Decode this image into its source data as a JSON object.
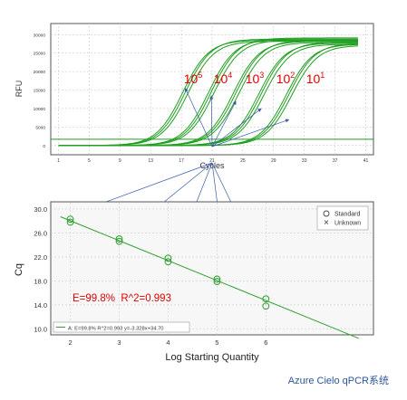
{
  "caption": "Azure Cielo qPCR系统",
  "chart_data": [
    {
      "type": "line",
      "title": "",
      "xlabel": "Cycles",
      "ylabel": "RFU",
      "xlim": [
        0,
        42
      ],
      "ylim": [
        -2500,
        33000
      ],
      "x_ticks": [
        1,
        5,
        9,
        13,
        17,
        21,
        25,
        29,
        33,
        37,
        41
      ],
      "y_ticks": [
        0,
        5000,
        10000,
        15000,
        20000,
        25000,
        30000
      ],
      "grid": true,
      "baseline_rfu": 1700,
      "threshold_rfu": 1700,
      "curve_color": "#1f9e1f",
      "dilution_labels": [
        "10",
        "10",
        "10",
        "10",
        "10"
      ],
      "dilution_exponents": [
        "5",
        "4",
        "3",
        "2",
        "1"
      ],
      "dilution_label_color": "#e00000",
      "series": [
        {
          "midpoint": 17.5,
          "plateau": 28500,
          "replicates": 3
        },
        {
          "midpoint": 20.9,
          "plateau": 28800,
          "replicates": 3
        },
        {
          "midpoint": 24.1,
          "plateau": 28200,
          "replicates": 3
        },
        {
          "midpoint": 27.4,
          "plateau": 27700,
          "replicates": 3
        },
        {
          "midpoint": 31.0,
          "plateau": 27400,
          "replicates": 3
        }
      ]
    },
    {
      "type": "scatter",
      "title": "",
      "xlabel": "Log Starting Quantity",
      "ylabel": "Cq",
      "xlim": [
        1.6,
        8.2
      ],
      "ylim": [
        9.0,
        31.2
      ],
      "x_ticks": [
        "2",
        "3",
        "4",
        "5",
        "6"
      ],
      "y_ticks": [
        "10.0",
        "14.0",
        "18.0",
        "22.0",
        "26.0",
        "30.0"
      ],
      "grid": true,
      "legend": {
        "position": "top-right",
        "entries": [
          "Standard",
          "Unknown"
        ]
      },
      "series_name": "Standard",
      "points": [
        {
          "x": 2,
          "y": 27.8
        },
        {
          "x": 2,
          "y": 28.3
        },
        {
          "x": 3,
          "y": 24.6
        },
        {
          "x": 3,
          "y": 25.0
        },
        {
          "x": 4,
          "y": 21.2
        },
        {
          "x": 4,
          "y": 21.8
        },
        {
          "x": 5,
          "y": 17.9
        },
        {
          "x": 5,
          "y": 18.3
        },
        {
          "x": 6,
          "y": 13.8
        },
        {
          "x": 6,
          "y": 15.0
        }
      ],
      "fit": {
        "slope": -3.328,
        "intercept": 34.7,
        "x_from": 1.8,
        "x_to": 7.9,
        "color": "#2e9e2e"
      },
      "annotation": "E=99.8%  R^2=0.993",
      "annotation_color": "#e00000",
      "fit_legend": "A: E=99.8% R^2=0.993 y=-3.328x+34.70"
    }
  ]
}
